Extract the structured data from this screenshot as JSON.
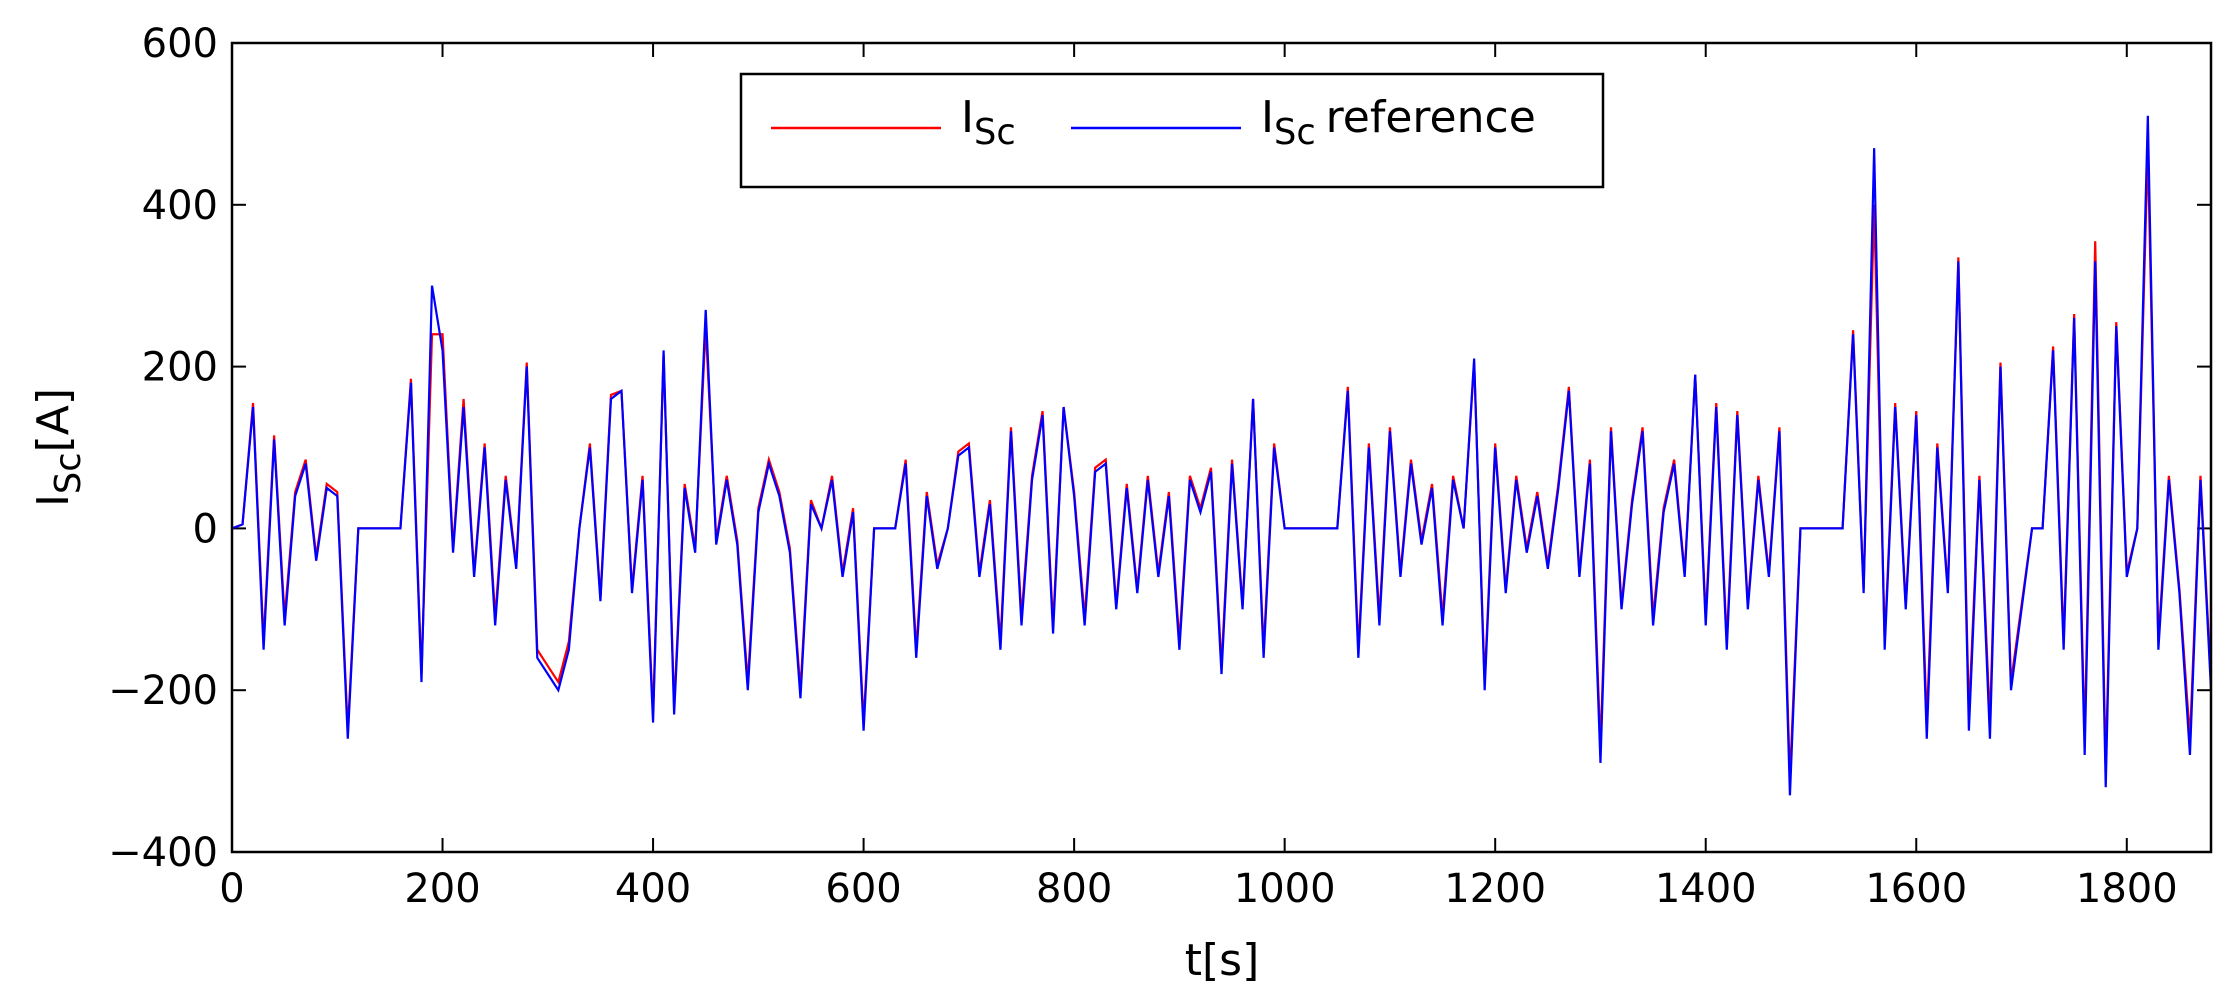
{
  "chart_data": {
    "type": "line",
    "xlabel": "t[s]",
    "ylabel": {
      "symbol": "I",
      "subscript": "Sc",
      "suffix": "[A]"
    },
    "xlim": [
      0,
      1880
    ],
    "ylim": [
      -400,
      600
    ],
    "xticks": [
      0,
      200,
      400,
      600,
      800,
      1000,
      1200,
      1400,
      1600,
      1800
    ],
    "yticks": [
      {
        "value": -400,
        "label": "−400"
      },
      {
        "value": -200,
        "label": "−200"
      },
      0,
      200,
      400,
      600
    ],
    "grid": false,
    "legend": "top",
    "x": [
      0,
      10,
      20,
      30,
      40,
      50,
      60,
      70,
      80,
      90,
      100,
      110,
      120,
      130,
      140,
      150,
      160,
      170,
      180,
      190,
      200,
      210,
      220,
      230,
      240,
      250,
      260,
      270,
      280,
      290,
      300,
      310,
      320,
      330,
      340,
      350,
      360,
      370,
      380,
      390,
      400,
      410,
      420,
      430,
      440,
      450,
      460,
      470,
      480,
      490,
      500,
      510,
      520,
      530,
      540,
      550,
      560,
      570,
      580,
      590,
      600,
      610,
      620,
      630,
      640,
      650,
      660,
      670,
      680,
      690,
      700,
      710,
      720,
      730,
      740,
      750,
      760,
      770,
      780,
      790,
      800,
      810,
      820,
      830,
      840,
      850,
      860,
      870,
      880,
      890,
      900,
      910,
      920,
      930,
      940,
      950,
      960,
      970,
      980,
      990,
      1000,
      1010,
      1020,
      1030,
      1040,
      1050,
      1060,
      1070,
      1080,
      1090,
      1100,
      1110,
      1120,
      1130,
      1140,
      1150,
      1160,
      1170,
      1180,
      1190,
      1200,
      1210,
      1220,
      1230,
      1240,
      1250,
      1260,
      1270,
      1280,
      1290,
      1300,
      1310,
      1320,
      1330,
      1340,
      1350,
      1360,
      1370,
      1380,
      1390,
      1400,
      1410,
      1420,
      1430,
      1440,
      1450,
      1460,
      1470,
      1480,
      1490,
      1500,
      1510,
      1520,
      1530,
      1540,
      1550,
      1560,
      1570,
      1580,
      1590,
      1600,
      1610,
      1620,
      1630,
      1640,
      1650,
      1660,
      1670,
      1680,
      1690,
      1700,
      1710,
      1720,
      1730,
      1740,
      1750,
      1760,
      1770,
      1780,
      1790,
      1800,
      1810,
      1820,
      1830,
      1840,
      1850,
      1860,
      1870,
      1880
    ],
    "series": [
      {
        "label": {
          "symbol": "I",
          "subscript": "Sc"
        },
        "color": "#ff0000",
        "values": [
          0,
          5,
          155,
          -140,
          115,
          -110,
          45,
          85,
          -35,
          55,
          45,
          -250,
          0,
          0,
          0,
          0,
          0,
          185,
          -180,
          240,
          240,
          -25,
          160,
          -55,
          105,
          -110,
          65,
          -45,
          205,
          -150,
          -170,
          -190,
          -140,
          0,
          105,
          -85,
          165,
          170,
          -75,
          65,
          -230,
          215,
          -220,
          55,
          -25,
          250,
          -15,
          65,
          -15,
          -190,
          25,
          85,
          45,
          -25,
          -200,
          35,
          0,
          65,
          -55,
          25,
          -240,
          0,
          0,
          0,
          85,
          -150,
          45,
          -45,
          0,
          95,
          105,
          -55,
          35,
          -140,
          125,
          -110,
          65,
          145,
          -120,
          150,
          45,
          -110,
          75,
          85,
          -95,
          55,
          -75,
          65,
          -55,
          45,
          -140,
          65,
          25,
          75,
          -170,
          85,
          -95,
          160,
          -150,
          105,
          0,
          0,
          0,
          0,
          0,
          0,
          175,
          -150,
          105,
          -110,
          125,
          -55,
          85,
          -15,
          55,
          -110,
          65,
          0,
          205,
          -190,
          105,
          -75,
          65,
          -25,
          45,
          -45,
          55,
          175,
          -55,
          85,
          -270,
          125,
          -95,
          35,
          125,
          -110,
          25,
          85,
          -55,
          190,
          -110,
          155,
          -140,
          145,
          -95,
          65,
          -55,
          125,
          -310,
          0,
          0,
          0,
          0,
          0,
          245,
          -75,
          400,
          -140,
          155,
          -95,
          145,
          -240,
          105,
          -75,
          335,
          -230,
          65,
          -240,
          205,
          -190,
          -95,
          0,
          0,
          225,
          -140,
          265,
          -260,
          355,
          -300,
          255,
          -55,
          0,
          470,
          -140,
          65,
          -75,
          -260,
          65,
          -190
        ]
      },
      {
        "label": {
          "symbol": "I",
          "subscript": "Sc",
          "suffix": "reference"
        },
        "color": "#0000ff",
        "values": [
          0,
          5,
          150,
          -150,
          110,
          -120,
          40,
          80,
          -40,
          50,
          40,
          -260,
          0,
          0,
          0,
          0,
          0,
          180,
          -190,
          300,
          220,
          -30,
          150,
          -60,
          100,
          -120,
          60,
          -50,
          200,
          -160,
          -180,
          -200,
          -150,
          0,
          100,
          -90,
          160,
          170,
          -80,
          60,
          -240,
          220,
          -230,
          50,
          -30,
          270,
          -20,
          60,
          -20,
          -200,
          20,
          80,
          40,
          -30,
          -210,
          30,
          0,
          60,
          -60,
          20,
          -250,
          0,
          0,
          0,
          80,
          -160,
          40,
          -50,
          0,
          90,
          100,
          -60,
          30,
          -150,
          120,
          -120,
          60,
          140,
          -130,
          150,
          40,
          -120,
          70,
          80,
          -100,
          50,
          -80,
          60,
          -60,
          40,
          -150,
          60,
          20,
          70,
          -180,
          80,
          -100,
          160,
          -160,
          100,
          0,
          0,
          0,
          0,
          0,
          0,
          170,
          -160,
          100,
          -120,
          120,
          -60,
          80,
          -20,
          50,
          -120,
          60,
          0,
          210,
          -200,
          100,
          -80,
          60,
          -30,
          40,
          -50,
          50,
          170,
          -60,
          80,
          -290,
          120,
          -100,
          30,
          120,
          -120,
          20,
          80,
          -60,
          190,
          -120,
          150,
          -150,
          140,
          -100,
          60,
          -60,
          120,
          -330,
          0,
          0,
          0,
          0,
          0,
          240,
          -80,
          470,
          -150,
          150,
          -100,
          140,
          -260,
          100,
          -80,
          330,
          -250,
          60,
          -260,
          200,
          -200,
          -100,
          0,
          0,
          220,
          -150,
          260,
          -280,
          330,
          -320,
          250,
          -60,
          0,
          510,
          -150,
          60,
          -80,
          -280,
          60,
          -200
        ]
      }
    ]
  }
}
